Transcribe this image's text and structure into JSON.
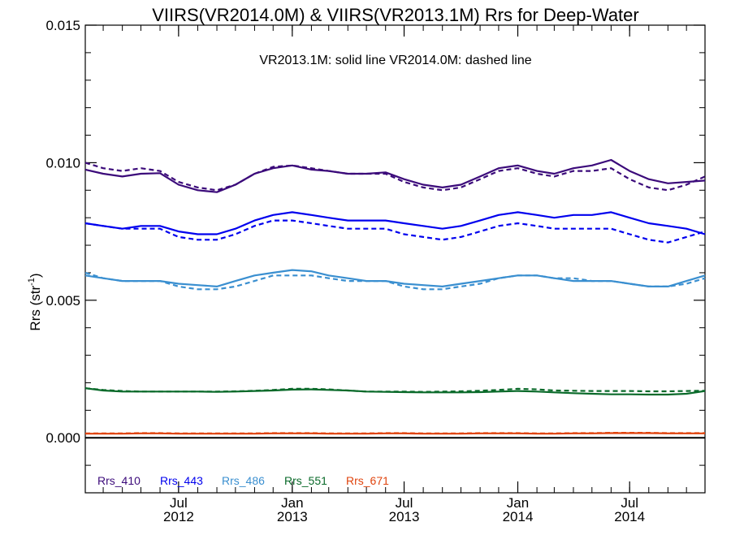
{
  "chart_data": {
    "type": "line",
    "title": "VIIRS(VR2014.0M) & VIIRS(VR2013.1M)  Rrs for Deep-Water",
    "annotation": "VR2013.1M: solid line   VR2014.0M: dashed line",
    "ylabel": "Rrs (str",
    "ylabel_sup": "-1",
    "ylabel_close": ")",
    "ylim": [
      -0.002,
      0.015
    ],
    "xlim": [
      "2012-02-01",
      "2014-10-31"
    ],
    "y_ticks": [
      0.0,
      0.005,
      0.01,
      0.015
    ],
    "y_tick_labels": [
      "0.000",
      "0.005",
      "0.010",
      "0.015"
    ],
    "x_ticks": [
      "2012-07-01",
      "2013-01-01",
      "2013-07-01",
      "2014-01-01",
      "2014-07-01"
    ],
    "x_tick_labels": [
      [
        "Jul",
        "2012"
      ],
      [
        "Jan",
        "2013"
      ],
      [
        "Jul",
        "2013"
      ],
      [
        "Jan",
        "2014"
      ],
      [
        "Jul",
        "2014"
      ]
    ],
    "grid": false,
    "legend_position": "bottom-left",
    "zero_line": true,
    "x": [
      "2012-02-01",
      "2012-03-01",
      "2012-04-01",
      "2012-05-01",
      "2012-06-01",
      "2012-07-01",
      "2012-08-01",
      "2012-09-01",
      "2012-10-01",
      "2012-11-01",
      "2012-12-01",
      "2013-01-01",
      "2013-02-01",
      "2013-03-01",
      "2013-04-01",
      "2013-05-01",
      "2013-06-01",
      "2013-07-01",
      "2013-08-01",
      "2013-09-01",
      "2013-10-01",
      "2013-11-01",
      "2013-12-01",
      "2014-01-01",
      "2014-02-01",
      "2014-03-01",
      "2014-04-01",
      "2014-05-01",
      "2014-06-01",
      "2014-07-01",
      "2014-08-01",
      "2014-09-01",
      "2014-10-01",
      "2014-10-31"
    ],
    "series": [
      {
        "name": "Rrs_410",
        "version": "VR2013.1M",
        "style": "solid",
        "color": "#3b0a7a",
        "values": [
          0.00975,
          0.0096,
          0.0095,
          0.0096,
          0.00962,
          0.0092,
          0.009,
          0.00893,
          0.0092,
          0.0096,
          0.0098,
          0.0099,
          0.00975,
          0.0097,
          0.0096,
          0.0096,
          0.00965,
          0.0094,
          0.0092,
          0.0091,
          0.0092,
          0.0095,
          0.0098,
          0.0099,
          0.0097,
          0.0096,
          0.0098,
          0.0099,
          0.0101,
          0.0097,
          0.0094,
          0.00925,
          0.0093,
          0.00935
        ]
      },
      {
        "name": "Rrs_410",
        "version": "VR2014.0M",
        "style": "dashed",
        "color": "#3b0a7a",
        "values": [
          0.01,
          0.0098,
          0.0097,
          0.0098,
          0.0097,
          0.0093,
          0.0091,
          0.009,
          0.0092,
          0.0096,
          0.00985,
          0.0099,
          0.0098,
          0.0097,
          0.0096,
          0.0096,
          0.0096,
          0.0093,
          0.0091,
          0.009,
          0.0091,
          0.0094,
          0.0097,
          0.0098,
          0.0096,
          0.0095,
          0.0097,
          0.0097,
          0.0098,
          0.0094,
          0.0091,
          0.009,
          0.0092,
          0.0095
        ]
      },
      {
        "name": "Rrs_443",
        "version": "VR2013.1M",
        "style": "solid",
        "color": "#0000ee",
        "values": [
          0.0078,
          0.0077,
          0.0076,
          0.0077,
          0.0077,
          0.0075,
          0.0074,
          0.0074,
          0.0076,
          0.0079,
          0.0081,
          0.0082,
          0.0081,
          0.008,
          0.0079,
          0.0079,
          0.0079,
          0.0078,
          0.0077,
          0.0076,
          0.0077,
          0.0079,
          0.0081,
          0.0082,
          0.0081,
          0.008,
          0.0081,
          0.0081,
          0.0082,
          0.008,
          0.0078,
          0.0077,
          0.0076,
          0.0074
        ]
      },
      {
        "name": "Rrs_443",
        "version": "VR2014.0M",
        "style": "dashed",
        "color": "#0000ee",
        "values": [
          0.0078,
          0.0077,
          0.0076,
          0.0076,
          0.0076,
          0.0073,
          0.0072,
          0.0072,
          0.0074,
          0.0077,
          0.0079,
          0.0079,
          0.0078,
          0.0077,
          0.0076,
          0.0076,
          0.0076,
          0.0074,
          0.0073,
          0.0072,
          0.0073,
          0.0075,
          0.0077,
          0.0078,
          0.0077,
          0.0076,
          0.0076,
          0.0076,
          0.0076,
          0.0074,
          0.0072,
          0.0071,
          0.0073,
          0.0075
        ]
      },
      {
        "name": "Rrs_486",
        "version": "VR2013.1M",
        "style": "solid",
        "color": "#3a8fd0",
        "values": [
          0.0059,
          0.0058,
          0.0057,
          0.0057,
          0.0057,
          0.0056,
          0.00555,
          0.0055,
          0.0057,
          0.0059,
          0.006,
          0.0061,
          0.00605,
          0.0059,
          0.0058,
          0.0057,
          0.0057,
          0.0056,
          0.00555,
          0.0055,
          0.0056,
          0.0057,
          0.0058,
          0.0059,
          0.0059,
          0.0058,
          0.0057,
          0.0057,
          0.0057,
          0.0056,
          0.0055,
          0.0055,
          0.0057,
          0.0059
        ]
      },
      {
        "name": "Rrs_486",
        "version": "VR2014.0M",
        "style": "dashed",
        "color": "#3a8fd0",
        "values": [
          0.006,
          0.0058,
          0.0057,
          0.0057,
          0.0057,
          0.0055,
          0.0054,
          0.0054,
          0.0055,
          0.0057,
          0.0059,
          0.0059,
          0.0059,
          0.0058,
          0.0057,
          0.0057,
          0.0057,
          0.0055,
          0.0054,
          0.0054,
          0.0055,
          0.0056,
          0.0058,
          0.0059,
          0.0059,
          0.0058,
          0.0058,
          0.0057,
          0.0057,
          0.0056,
          0.0055,
          0.0055,
          0.0056,
          0.0058
        ]
      },
      {
        "name": "Rrs_551",
        "version": "VR2013.1M",
        "style": "solid",
        "color": "#0a6a2a",
        "values": [
          0.0018,
          0.00172,
          0.00168,
          0.00168,
          0.00168,
          0.00168,
          0.00168,
          0.00167,
          0.00168,
          0.0017,
          0.00172,
          0.00175,
          0.00176,
          0.00174,
          0.00172,
          0.00168,
          0.00167,
          0.00166,
          0.00165,
          0.00165,
          0.00165,
          0.00166,
          0.00168,
          0.0017,
          0.00168,
          0.00165,
          0.00162,
          0.0016,
          0.00158,
          0.00158,
          0.00157,
          0.00157,
          0.0016,
          0.0017
        ]
      },
      {
        "name": "Rrs_551",
        "version": "VR2014.0M",
        "style": "dashed",
        "color": "#0a6a2a",
        "values": [
          0.0018,
          0.00174,
          0.0017,
          0.00168,
          0.00168,
          0.00168,
          0.00168,
          0.00168,
          0.00169,
          0.00171,
          0.00174,
          0.00178,
          0.00178,
          0.00176,
          0.00172,
          0.00168,
          0.00168,
          0.00168,
          0.00167,
          0.00168,
          0.00169,
          0.00171,
          0.00174,
          0.00178,
          0.00176,
          0.00172,
          0.00171,
          0.0017,
          0.0017,
          0.0017,
          0.00169,
          0.00169,
          0.0017,
          0.00171
        ]
      },
      {
        "name": "Rrs_671",
        "version": "VR2013.1M",
        "style": "solid",
        "color": "#e0440e",
        "values": [
          0.00015,
          0.00015,
          0.00015,
          0.00016,
          0.00016,
          0.00015,
          0.00015,
          0.00015,
          0.00015,
          0.00015,
          0.00016,
          0.00016,
          0.00016,
          0.00015,
          0.00015,
          0.00015,
          0.00016,
          0.00016,
          0.00015,
          0.00015,
          0.00015,
          0.00016,
          0.00016,
          0.00016,
          0.00015,
          0.00015,
          0.00016,
          0.00016,
          0.00017,
          0.00017,
          0.00017,
          0.00016,
          0.00016,
          0.00016
        ]
      },
      {
        "name": "Rrs_671",
        "version": "VR2014.0M",
        "style": "dashed",
        "color": "#e0440e",
        "values": [
          0.00016,
          0.00016,
          0.00016,
          0.00017,
          0.00017,
          0.00016,
          0.00016,
          0.00016,
          0.00016,
          0.00016,
          0.00017,
          0.00017,
          0.00017,
          0.00016,
          0.00016,
          0.00016,
          0.00017,
          0.00017,
          0.00016,
          0.00016,
          0.00016,
          0.00017,
          0.00017,
          0.00017,
          0.00016,
          0.00016,
          0.00017,
          0.00017,
          0.00018,
          0.00018,
          0.00018,
          0.00017,
          0.00017,
          0.00017
        ]
      }
    ],
    "legend": [
      {
        "label": "Rrs_410",
        "color": "#3b0a7a"
      },
      {
        "label": "Rrs_443",
        "color": "#0000ee"
      },
      {
        "label": "Rrs_486",
        "color": "#3a8fd0"
      },
      {
        "label": "Rrs_551",
        "color": "#0a6a2a"
      },
      {
        "label": "Rrs_671",
        "color": "#e0440e"
      }
    ]
  }
}
